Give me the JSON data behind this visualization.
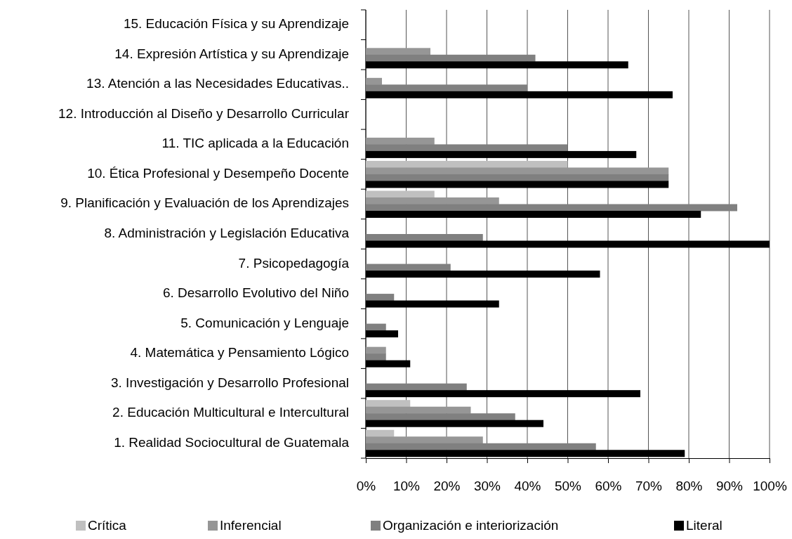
{
  "chart_data": {
    "type": "bar",
    "orientation": "horizontal",
    "categories": [
      "15. Educación Física y su Aprendizaje",
      "14. Expresión Artística y su Aprendizaje",
      "13. Atención a las Necesidades Educativas..",
      "12. Introducción al Diseño y Desarrollo Curricular",
      "11. TIC aplicada a la Educación",
      "10. Ética Profesional y Desempeño Docente",
      "9. Planificación y Evaluación de los Aprendizajes",
      "8. Administración y Legislación Educativa",
      "7. Psicopedagogía",
      "6. Desarrollo Evolutivo del Niño",
      "5. Comunicación y Lenguaje",
      "4. Matemática y Pensamiento Lógico",
      "3. Investigación y Desarrollo Profesional",
      "2. Educación Multicultural e Intercultural",
      "1. Realidad Sociocultural de Guatemala"
    ],
    "series": [
      {
        "name": "Crítica",
        "color": "#c0c0c0",
        "values": [
          0,
          0,
          0,
          0,
          0,
          50,
          17,
          0,
          0,
          0,
          0,
          0,
          0,
          11,
          7
        ]
      },
      {
        "name": "Inferencial",
        "color": "#969696",
        "values": [
          0,
          16,
          4,
          0,
          17,
          75,
          33,
          0,
          0,
          0,
          0,
          5,
          0,
          26,
          29
        ]
      },
      {
        "name": "Organización e interiorización",
        "color": "#808080",
        "values": [
          0,
          42,
          40,
          0,
          50,
          75,
          92,
          29,
          21,
          7,
          5,
          5,
          25,
          37,
          57
        ]
      },
      {
        "name": "Literal",
        "color": "#000000",
        "values": [
          0,
          65,
          76,
          0,
          67,
          75,
          83,
          100,
          58,
          33,
          8,
          11,
          68,
          44,
          79
        ]
      }
    ],
    "xlim": [
      0,
      100
    ],
    "xticks": [
      {
        "value": 0,
        "label": "0%"
      },
      {
        "value": 10,
        "label": "10%"
      },
      {
        "value": 20,
        "label": "20%"
      },
      {
        "value": 30,
        "label": "30%"
      },
      {
        "value": 40,
        "label": "40%"
      },
      {
        "value": 50,
        "label": "50%"
      },
      {
        "value": 60,
        "label": "60%"
      },
      {
        "value": 70,
        "label": "70%"
      },
      {
        "value": 80,
        "label": "80%"
      },
      {
        "value": 90,
        "label": "90%"
      },
      {
        "value": 100,
        "label": "100%"
      }
    ],
    "grid": "x",
    "legend": "bottom"
  }
}
